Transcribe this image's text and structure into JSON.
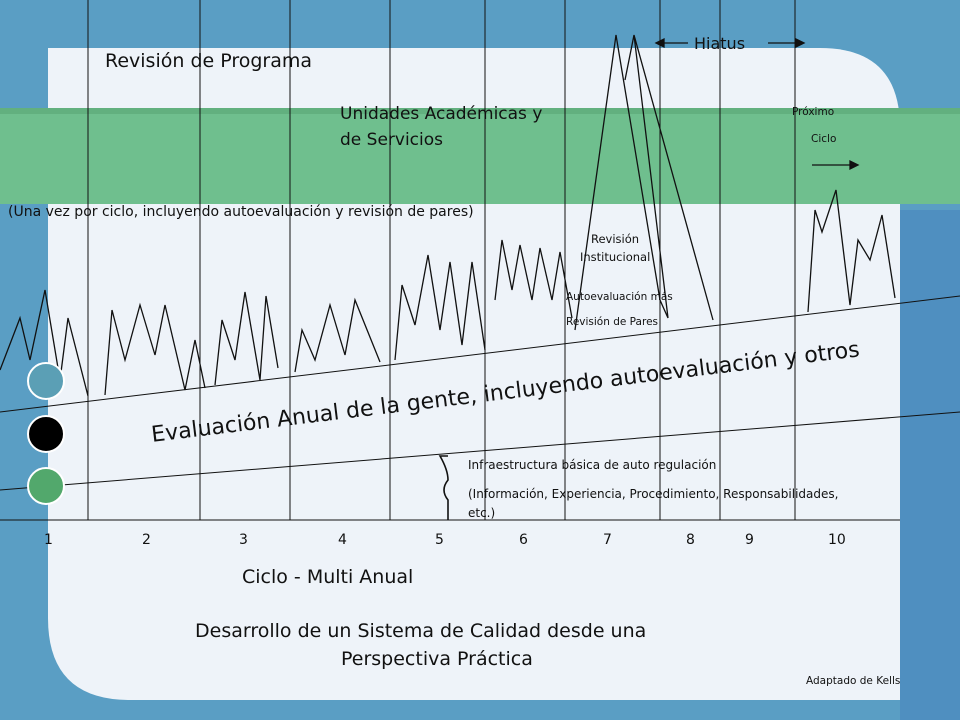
{
  "colors": {
    "outer_blue": "#5a9ec4",
    "panel": "#eef3f9",
    "green_band": "#6fbf8e",
    "dot_blue": "#5b9fb5",
    "dot_black": "#000000",
    "dot_green": "#52a86c"
  },
  "texts": {
    "program_review": "Revisión de Programa",
    "units": "Unidades Académicas y",
    "services": "de Servicios",
    "once_per_cycle": "(Una vez por ciclo, incluyendo autoevaluación y revisión de pares)",
    "hiatus": "Hiatus",
    "next": "Próximo",
    "cycle": "Ciclo",
    "inst_review_1": "Revisión",
    "inst_review_2": "Institucional",
    "self_eval_1": "Autoevaluación más",
    "self_eval_2": "Revisión de Pares",
    "annual": "Evaluación Anual de la gente, incluyendo autoevaluación y otros",
    "infra_1": "Infraestructura básica de auto regulación",
    "infra_2": "(Información, Experiencia, Procedimiento, Responsabilidades,",
    "infra_3": "etc.)",
    "multi": "Ciclo - Multi Anual",
    "dev_1": "Desarrollo de un Sistema de Calidad desde una",
    "dev_2": "Perspectiva Práctica",
    "credit": "Adaptado de Kells"
  },
  "timeline": [
    "1",
    "2",
    "3",
    "4",
    "5",
    "6",
    "7",
    "8",
    "9",
    "10"
  ]
}
